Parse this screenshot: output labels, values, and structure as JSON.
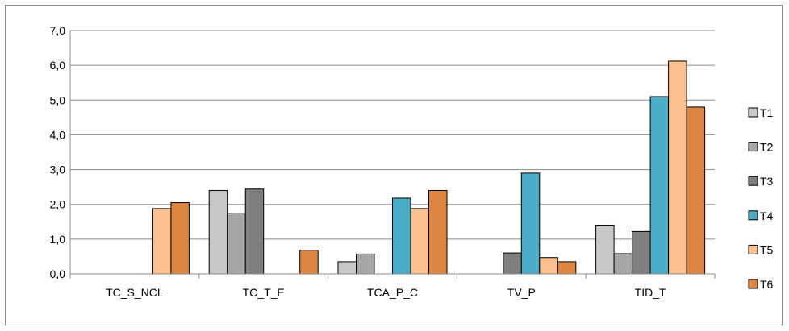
{
  "chart_data": {
    "type": "bar",
    "title": "",
    "xlabel": "",
    "ylabel": "",
    "ylim": [
      0,
      7
    ],
    "ytick_values": [
      0,
      1,
      2,
      3,
      4,
      5,
      6,
      7
    ],
    "ytick_labels": [
      "0,0",
      "1,0",
      "2,0",
      "3,0",
      "4,0",
      "5,0",
      "6,0",
      "7,0"
    ],
    "grid": true,
    "legend_position": "right",
    "categories": [
      "TC_S_NCL",
      "TC_T_E",
      "TCA_P_C",
      "TV_P",
      "TID_T"
    ],
    "series": [
      {
        "name": "T1",
        "color": "#c8c8c8",
        "values": [
          0,
          2.4,
          0.35,
          0,
          1.38
        ]
      },
      {
        "name": "T2",
        "color": "#a6a6a6",
        "values": [
          0,
          1.75,
          0.57,
          0,
          0.58
        ]
      },
      {
        "name": "T3",
        "color": "#7f7f7f",
        "values": [
          0,
          2.44,
          0,
          0.6,
          1.22
        ]
      },
      {
        "name": "T4",
        "color": "#4bacc6",
        "values": [
          0,
          0,
          2.18,
          2.9,
          5.1
        ]
      },
      {
        "name": "T5",
        "color": "#fac090",
        "values": [
          1.88,
          0,
          1.88,
          0.47,
          6.12
        ]
      },
      {
        "name": "T6",
        "color": "#dc8542",
        "values": [
          2.05,
          0.68,
          2.4,
          0.35,
          4.8
        ]
      }
    ]
  }
}
